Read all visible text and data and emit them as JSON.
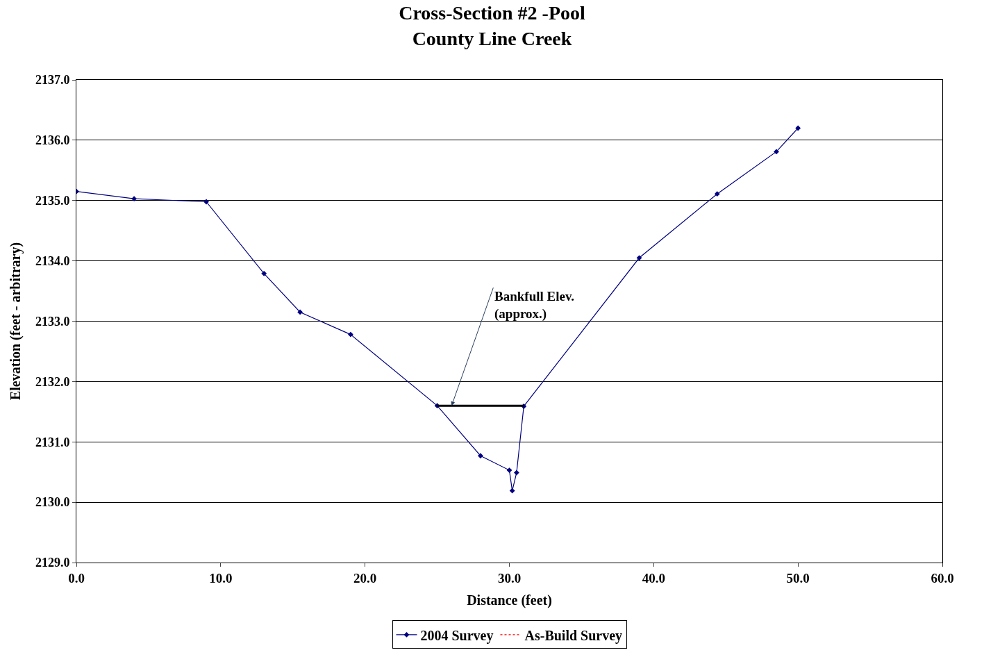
{
  "chart_data": {
    "type": "line",
    "title": "Cross-Section #2 -Pool\nCounty Line Creek",
    "xlabel": "Distance (feet)",
    "ylabel": "Elevation (feet - arbitrary)",
    "xlim": [
      0,
      60
    ],
    "xticks": [
      {
        "value": 0,
        "label": "0.0"
      },
      {
        "value": 10,
        "label": "10.0"
      },
      {
        "value": 20,
        "label": "20.0"
      },
      {
        "value": 30,
        "label": "30.0"
      },
      {
        "value": 40,
        "label": "40.0"
      },
      {
        "value": 50,
        "label": "50.0"
      },
      {
        "value": 60,
        "label": "60.0"
      }
    ],
    "ylim": [
      2129,
      2137
    ],
    "yticks": [
      {
        "value": 2129,
        "label": "2129.0"
      },
      {
        "value": 2130,
        "label": "2130.0"
      },
      {
        "value": 2131,
        "label": "2131.0"
      },
      {
        "value": 2132,
        "label": "2132.0"
      },
      {
        "value": 2133,
        "label": "2133.0"
      },
      {
        "value": 2134,
        "label": "2134.0"
      },
      {
        "value": 2135,
        "label": "2135.0"
      },
      {
        "value": 2136,
        "label": "2136.0"
      },
      {
        "value": 2137,
        "label": "2137.0"
      }
    ],
    "grid": "y",
    "legend": "bottom",
    "series": [
      {
        "name": "2004 Survey",
        "color": "#000080",
        "marker": "diamond",
        "line_style": "solid",
        "x": [
          0,
          4,
          9,
          13,
          15.5,
          19,
          25,
          28,
          30,
          30.2,
          30.5,
          31,
          39,
          44.4,
          48.5,
          50
        ],
        "values": [
          2135.15,
          2135.03,
          2134.98,
          2133.79,
          2133.15,
          2132.78,
          2131.6,
          2130.77,
          2130.53,
          2130.19,
          2130.49,
          2131.59,
          2134.05,
          2135.11,
          2135.81,
          2136.2
        ]
      },
      {
        "name": "As-Build Survey",
        "color": "#ff0000",
        "marker": "none",
        "line_style": "dotted"
      },
      {
        "color": "#000000",
        "marker": "none",
        "line_style": "solid",
        "x": [
          25,
          31
        ],
        "values": [
          2131.6,
          2131.6
        ]
      }
    ],
    "annotations": [
      {
        "text": "Bankfull Elev.\n(approx.)",
        "x": 26,
        "y": 2131.6
      }
    ]
  }
}
